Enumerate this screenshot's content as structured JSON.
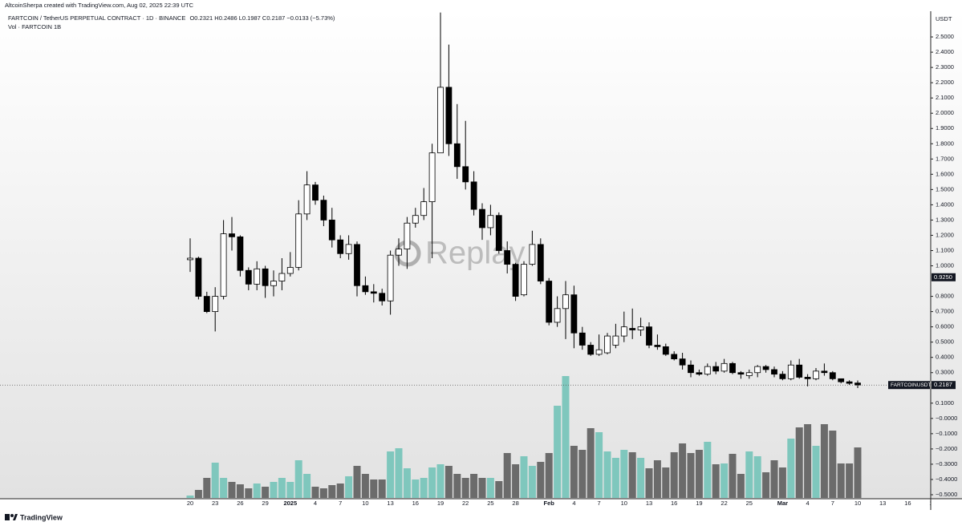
{
  "chart_data": {
    "type": "candlestick",
    "attribution": "AltcoinSherpa created with TradingView.com, Aug 02, 2025 22:39 UTC",
    "title": "FARTCOIN / TetherUS PERPETUAL CONTRACT · 1D · BINANCE",
    "ohlc_legend": "O0.2321 H0.2486 L0.1987 C0.2187 −0.0133 (−5.73%)",
    "volume_legend": "Vol · FARTCOIN 1B",
    "y_axis_label": "USDT",
    "watermark": "Replay",
    "footer": "TradingView",
    "up_color": "#ffffff",
    "down_color": "#000000",
    "volume_up_color": "#7fc7bd",
    "volume_down_color": "#6b6b6b",
    "categories": [
      "20",
      null,
      null,
      "23",
      null,
      null,
      "26",
      null,
      null,
      "29",
      null,
      null,
      "2025",
      null,
      null,
      "4",
      null,
      null,
      "7",
      null,
      null,
      "10",
      null,
      null,
      "13",
      null,
      null,
      "16",
      null,
      null,
      "19",
      null,
      null,
      "22",
      null,
      null,
      "25",
      null,
      null,
      "28",
      null,
      null,
      null,
      "Feb",
      null,
      null,
      "4",
      null,
      null,
      "7",
      null,
      null,
      "10",
      null,
      null,
      "13",
      null,
      null,
      "16",
      null,
      null,
      "19",
      null,
      null,
      "22",
      null,
      null,
      "25",
      null,
      null,
      null,
      "Mar",
      null,
      null,
      "4",
      null,
      null,
      "7",
      null,
      null,
      "10",
      null,
      null,
      "13",
      null,
      null,
      "16",
      null,
      null,
      "19"
    ],
    "open": [
      1.04,
      1.05,
      0.8,
      0.7,
      0.8,
      1.21,
      1.19,
      0.97,
      0.88,
      0.98,
      0.87,
      0.9,
      0.95,
      0.99,
      1.34,
      1.53,
      1.43,
      1.3,
      1.17,
      1.08,
      1.14,
      0.87,
      0.83,
      0.82,
      0.77,
      1.07,
      1.11,
      1.28,
      1.33,
      1.42,
      1.74,
      2.17,
      1.8,
      1.65,
      1.55,
      1.37,
      1.25,
      1.33,
      1.1,
      1.01,
      0.81,
      1.01,
      1.14,
      0.9,
      0.63,
      0.72,
      0.81,
      0.56,
      0.48,
      0.42,
      0.43,
      0.48,
      0.54,
      0.59,
      0.58,
      0.6,
      0.48,
      0.47,
      0.42,
      0.39,
      0.35,
      0.3,
      0.29,
      0.34,
      0.31,
      0.36,
      0.3,
      0.28,
      0.3,
      0.34,
      0.32,
      0.29,
      0.26,
      0.35,
      0.27,
      0.26,
      0.31,
      0.3,
      0.26,
      0.24,
      0.2321,
      null,
      null,
      null,
      null,
      null,
      null,
      null,
      null,
      null
    ],
    "high": [
      1.18,
      1.06,
      0.83,
      0.86,
      1.3,
      1.32,
      1.2,
      0.99,
      1.03,
      1.0,
      0.97,
      1.05,
      1.09,
      1.43,
      1.62,
      1.55,
      1.46,
      1.38,
      1.2,
      1.2,
      1.16,
      0.93,
      0.88,
      0.85,
      1.1,
      1.18,
      1.32,
      1.38,
      1.51,
      1.8,
      2.66,
      2.45,
      2.06,
      1.95,
      1.62,
      1.41,
      1.4,
      1.35,
      1.16,
      1.02,
      1.03,
      1.23,
      1.18,
      0.92,
      0.8,
      0.9,
      0.87,
      0.6,
      0.5,
      0.55,
      0.56,
      0.62,
      0.7,
      0.72,
      0.66,
      0.63,
      0.55,
      0.49,
      0.44,
      0.43,
      0.38,
      0.32,
      0.36,
      0.37,
      0.39,
      0.37,
      0.31,
      0.32,
      0.35,
      0.35,
      0.34,
      0.31,
      0.38,
      0.39,
      0.29,
      0.33,
      0.36,
      0.31,
      0.26,
      0.25,
      0.2486,
      null,
      null,
      null,
      null,
      null,
      null,
      null,
      null,
      null
    ],
    "low": [
      0.96,
      0.78,
      0.69,
      0.57,
      0.78,
      1.1,
      0.93,
      0.84,
      0.84,
      0.79,
      0.8,
      0.84,
      0.93,
      0.97,
      1.3,
      1.4,
      1.26,
      1.12,
      1.05,
      1.04,
      0.8,
      0.81,
      0.76,
      0.74,
      0.68,
      1.0,
      0.98,
      1.25,
      1.3,
      1.05,
      1.74,
      1.72,
      1.57,
      1.5,
      1.33,
      1.17,
      1.2,
      1.08,
      0.95,
      0.77,
      0.8,
      1.0,
      0.88,
      0.61,
      0.6,
      0.52,
      0.46,
      0.45,
      0.41,
      0.41,
      0.42,
      0.46,
      0.5,
      0.52,
      0.54,
      0.46,
      0.45,
      0.41,
      0.38,
      0.32,
      0.27,
      0.28,
      0.28,
      0.29,
      0.3,
      0.29,
      0.26,
      0.26,
      0.27,
      0.3,
      0.27,
      0.25,
      0.25,
      0.26,
      0.21,
      0.25,
      0.28,
      0.25,
      0.23,
      0.22,
      0.1987,
      null,
      null,
      null,
      null,
      null,
      null,
      null,
      null,
      null
    ],
    "close": [
      1.05,
      0.8,
      0.7,
      0.8,
      1.21,
      1.19,
      0.97,
      0.88,
      0.98,
      0.87,
      0.9,
      0.95,
      0.99,
      1.34,
      1.53,
      1.43,
      1.3,
      1.17,
      1.08,
      1.14,
      0.87,
      0.83,
      0.82,
      0.77,
      1.07,
      1.11,
      1.28,
      1.33,
      1.42,
      1.74,
      2.17,
      1.8,
      1.65,
      1.55,
      1.37,
      1.25,
      1.33,
      1.1,
      1.01,
      0.8,
      1.01,
      1.14,
      0.9,
      0.63,
      0.72,
      0.81,
      0.56,
      0.48,
      0.42,
      0.45,
      0.54,
      0.54,
      0.6,
      0.58,
      0.6,
      0.48,
      0.47,
      0.42,
      0.39,
      0.35,
      0.3,
      0.29,
      0.34,
      0.31,
      0.36,
      0.3,
      0.29,
      0.3,
      0.34,
      0.32,
      0.29,
      0.26,
      0.35,
      0.27,
      0.26,
      0.31,
      0.3,
      0.26,
      0.24,
      0.23,
      0.2187,
      null,
      null,
      null,
      null,
      null,
      null,
      null,
      null,
      null
    ],
    "volume": [
      3,
      10,
      25,
      44,
      25,
      20,
      17,
      12,
      18,
      14,
      20,
      25,
      20,
      47,
      30,
      14,
      12,
      16,
      18,
      27,
      40,
      30,
      23,
      23,
      58,
      62,
      37,
      23,
      25,
      38,
      42,
      40,
      30,
      25,
      30,
      25,
      25,
      21,
      56,
      42,
      52,
      40,
      45,
      56,
      115,
      152,
      65,
      60,
      87,
      82,
      58,
      50,
      60,
      57,
      50,
      37,
      47,
      38,
      57,
      68,
      56,
      60,
      70,
      42,
      43,
      55,
      30,
      58,
      52,
      32,
      47,
      38,
      74,
      88,
      92,
      65,
      92,
      84,
      43,
      43,
      63,
      null,
      null,
      null,
      null,
      null,
      null,
      null,
      null,
      null
    ],
    "vlim": [
      0,
      160
    ],
    "ylim": [
      -0.5263,
      2.6684
    ],
    "yticks": [
      {
        "value": 2.5,
        "label": "2.5000"
      },
      {
        "value": 2.4,
        "label": "2.4000"
      },
      {
        "value": 2.3,
        "label": "2.3000"
      },
      {
        "value": 2.2,
        "label": "2.2000"
      },
      {
        "value": 2.1,
        "label": "2.1000"
      },
      {
        "value": 2.0,
        "label": "2.0000"
      },
      {
        "value": 1.9,
        "label": "1.9000"
      },
      {
        "value": 1.8,
        "label": "1.8000"
      },
      {
        "value": 1.7,
        "label": "1.7000"
      },
      {
        "value": 1.6,
        "label": "1.6000"
      },
      {
        "value": 1.5,
        "label": "1.5000"
      },
      {
        "value": 1.4,
        "label": "1.4000"
      },
      {
        "value": 1.3,
        "label": "1.3000"
      },
      {
        "value": 1.2,
        "label": "1.2000"
      },
      {
        "value": 1.1,
        "label": "1.1000"
      },
      {
        "value": 1.0,
        "label": "1.0000"
      },
      {
        "value": 0.8,
        "label": "0.8000"
      },
      {
        "value": 0.7,
        "label": "0.7000"
      },
      {
        "value": 0.6,
        "label": "0.6000"
      },
      {
        "value": 0.5,
        "label": "0.5000"
      },
      {
        "value": 0.4,
        "label": "0.4000"
      },
      {
        "value": 0.3,
        "label": "0.3000"
      },
      {
        "value": 0.1,
        "label": "0.1000"
      },
      {
        "value": 0,
        "label": "−0.0000"
      },
      {
        "value": -0.1,
        "label": "−0.1000"
      },
      {
        "value": -0.2,
        "label": "−0.2000"
      },
      {
        "value": -0.3,
        "label": "−0.3000"
      },
      {
        "value": -0.4,
        "label": "−0.4000"
      },
      {
        "value": -0.5,
        "label": "−0.5000"
      }
    ],
    "price_marker": {
      "value": 0.925,
      "label": "0.9250"
    },
    "last_price": {
      "symbol": "FARTCOINUSDT.P",
      "value": 0.2187,
      "label": "0.2187"
    }
  }
}
